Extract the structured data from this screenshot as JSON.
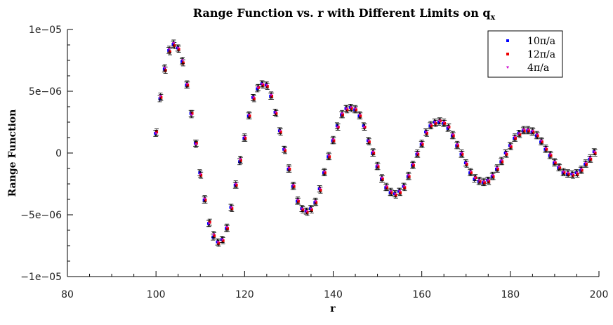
{
  "chart_data": {
    "type": "scatter",
    "title": "Range Function vs. r with Different Limits on q",
    "title_subscript": "x",
    "xlabel": "r",
    "ylabel": "Range Function",
    "xlim": [
      80,
      200
    ],
    "ylim": [
      -1e-05,
      1e-05
    ],
    "x_ticks": [
      80,
      100,
      120,
      140,
      160,
      180,
      200
    ],
    "x_tick_labels": [
      "80",
      "100",
      "120",
      "140",
      "160",
      "180",
      "200"
    ],
    "y_ticks": [
      1e-05,
      5e-06,
      0,
      -5e-06,
      -1e-05
    ],
    "y_tick_labels": [
      "1e−05",
      "5e−06",
      "0",
      "−5e−06",
      "−1e−05"
    ],
    "grid": false,
    "legend_position": "top-right",
    "x": [
      100,
      101,
      102,
      103,
      104,
      105,
      106,
      107,
      108,
      109,
      110,
      111,
      112,
      113,
      114,
      115,
      116,
      117,
      118,
      119,
      120,
      121,
      122,
      123,
      124,
      125,
      126,
      127,
      128,
      129,
      130,
      131,
      132,
      133,
      134,
      135,
      136,
      137,
      138,
      139,
      140,
      141,
      142,
      143,
      144,
      145,
      146,
      147,
      148,
      149,
      150,
      151,
      152,
      153,
      154,
      155,
      156,
      157,
      158,
      159,
      160,
      161,
      162,
      163,
      164,
      165,
      166,
      167,
      168,
      169,
      170,
      171,
      172,
      173,
      174,
      175,
      176,
      177,
      178,
      179,
      180,
      181,
      182,
      183,
      184,
      185,
      186,
      187,
      188,
      189,
      190,
      191,
      192,
      193,
      194,
      195,
      196,
      197,
      198,
      199
    ],
    "series": [
      {
        "name": "10π/a",
        "marker": "square",
        "color": "#0000ff",
        "y": [
          1.6e-06,
          4.4e-06,
          6.8e-06,
          8.3e-06,
          8.8e-06,
          8.5e-06,
          7.4e-06,
          5.5e-06,
          3.2e-06,
          8e-07,
          -1.6e-06,
          -3.8e-06,
          -5.7e-06,
          -6.8e-06,
          -7.2e-06,
          -7e-06,
          -6.1e-06,
          -4.4e-06,
          -2.6e-06,
          -7e-07,
          1.2e-06,
          3e-06,
          4.5e-06,
          5.2e-06,
          5.6e-06,
          5.5e-06,
          4.6e-06,
          3.3e-06,
          1.8e-06,
          3e-07,
          -1.3e-06,
          -2.7e-06,
          -3.9e-06,
          -4.5e-06,
          -4.7e-06,
          -4.5e-06,
          -4e-06,
          -2.9e-06,
          -1.6e-06,
          -3e-07,
          1e-06,
          2.2e-06,
          3.1e-06,
          3.6e-06,
          3.7e-06,
          3.5e-06,
          3e-06,
          2.2e-06,
          1e-06,
          0.0,
          -1.1e-06,
          -2.1e-06,
          -2.8e-06,
          -3.2e-06,
          -3.3e-06,
          -3.1e-06,
          -2.7e-06,
          -1.9e-06,
          -1e-06,
          -1e-07,
          7e-07,
          1.7e-06,
          2.2e-06,
          2.5e-06,
          2.5e-06,
          2.4e-06,
          2e-06,
          1.4e-06,
          6e-07,
          -1e-07,
          -8e-07,
          -1.6e-06,
          -2.1e-06,
          -2.3e-06,
          -2.4e-06,
          -2.2e-06,
          -1.9e-06,
          -1.3e-06,
          -7e-07,
          0.0,
          6e-07,
          1.2e-06,
          1.6e-06,
          1.8e-06,
          1.8e-06,
          1.7e-06,
          1.4e-06,
          9e-07,
          3e-07,
          -2e-07,
          -8e-07,
          -1.2e-06,
          -1.6e-06,
          -1.7e-06,
          -1.7e-06,
          -1.6e-06,
          -1.4e-06,
          -9e-07,
          -5e-07,
          1e-07
        ]
      },
      {
        "name": "12π/a",
        "marker": "square",
        "color": "#ee0000",
        "y": [
          1.7e-06,
          4.5e-06,
          6.7e-06,
          8.2e-06,
          8.7e-06,
          8.4e-06,
          7.3e-06,
          5.5e-06,
          3.2e-06,
          8e-07,
          -1.8e-06,
          -3.8e-06,
          -5.6e-06,
          -6.7e-06,
          -7.3e-06,
          -7.1e-06,
          -6.1e-06,
          -4.5e-06,
          -2.6e-06,
          -6e-07,
          1.2e-06,
          3e-06,
          4.4e-06,
          5.3e-06,
          5.5e-06,
          5.4e-06,
          4.6e-06,
          3.2e-06,
          1.7e-06,
          2e-07,
          -1.3e-06,
          -2.7e-06,
          -3.9e-06,
          -4.6e-06,
          -4.8e-06,
          -4.6e-06,
          -4e-06,
          -3e-06,
          -1.6e-06,
          -3e-07,
          1e-06,
          2.1e-06,
          3.1e-06,
          3.5e-06,
          3.6e-06,
          3.5e-06,
          3e-06,
          2.1e-06,
          9e-07,
          0.0,
          -1.1e-06,
          -2.1e-06,
          -2.8e-06,
          -3.2e-06,
          -3.4e-06,
          -3.2e-06,
          -2.8e-06,
          -1.9e-06,
          -1e-06,
          -1e-07,
          7e-07,
          1.6e-06,
          2.2e-06,
          2.4e-06,
          2.6e-06,
          2.4e-06,
          2.1e-06,
          1.4e-06,
          6e-07,
          -1e-07,
          -9e-07,
          -1.6e-06,
          -2e-06,
          -2.3e-06,
          -2.4e-06,
          -2.3e-06,
          -1.9e-06,
          -1.3e-06,
          -7e-07,
          -1e-07,
          5e-07,
          1.2e-06,
          1.5e-06,
          1.8e-06,
          1.8e-06,
          1.7e-06,
          1.4e-06,
          9e-07,
          3e-07,
          -2e-07,
          -8e-07,
          -1.2e-06,
          -1.6e-06,
          -1.7e-06,
          -1.8e-06,
          -1.7e-06,
          -1.4e-06,
          -9e-07,
          -5e-07,
          0.0
        ]
      },
      {
        "name": "4π/a",
        "marker": "triangle-down",
        "color": "#cc00cc",
        "y": [
          1.6e-06,
          4.6e-06,
          6.9e-06,
          8.4e-06,
          8.9e-06,
          8.5e-06,
          7.5e-06,
          5.6e-06,
          3.1e-06,
          7e-07,
          -1.7e-06,
          -3.7e-06,
          -5.7e-06,
          -6.6e-06,
          -7.2e-06,
          -7e-06,
          -6e-06,
          -4.4e-06,
          -2.5e-06,
          -5e-07,
          1.3e-06,
          3.1e-06,
          4.5e-06,
          5.3e-06,
          5.6e-06,
          5.5e-06,
          4.7e-06,
          3.3e-06,
          1.8e-06,
          3e-07,
          -1.2e-06,
          -2.6e-06,
          -3.8e-06,
          -4.5e-06,
          -4.7e-06,
          -4.5e-06,
          -3.9e-06,
          -2.9e-06,
          -1.5e-06,
          -2e-07,
          1.1e-06,
          2.1e-06,
          3.2e-06,
          3.6e-06,
          3.7e-06,
          3.6e-06,
          3.1e-06,
          2.1e-06,
          1e-06,
          1e-07,
          -1e-06,
          -2e-06,
          -2.7e-06,
          -3.1e-06,
          -3.3e-06,
          -3.1e-06,
          -2.7e-06,
          -1.8e-06,
          -9e-07,
          0.0,
          8e-07,
          1.7e-06,
          2.3e-06,
          2.5e-06,
          2.6e-06,
          2.5e-06,
          2.1e-06,
          1.5e-06,
          7e-07,
          0.0,
          -8e-07,
          -1.5e-06,
          -2e-06,
          -2.2e-06,
          -2.3e-06,
          -2.2e-06,
          -1.8e-06,
          -1.2e-06,
          -6e-07,
          0.0,
          6e-07,
          1.3e-06,
          1.6e-06,
          1.9e-06,
          1.9e-06,
          1.8e-06,
          1.5e-06,
          1e-06,
          4e-07,
          -1e-07,
          -7e-07,
          -1.1e-06,
          -1.5e-06,
          -1.6e-06,
          -1.7e-06,
          -1.6e-06,
          -1.3e-06,
          -8e-07,
          -4e-07,
          1e-07
        ]
      }
    ],
    "error_bar": 2.5e-07
  }
}
